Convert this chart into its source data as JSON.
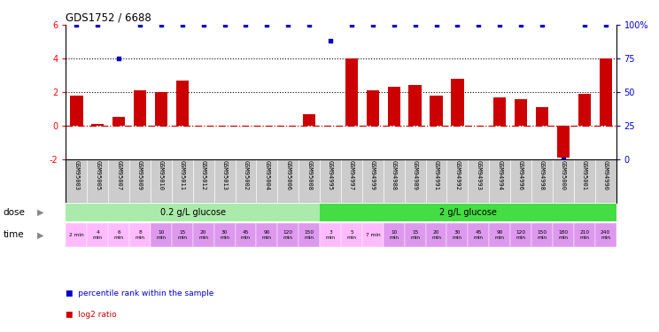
{
  "title": "GDS1752 / 6688",
  "samples": [
    "GSM95003",
    "GSM95005",
    "GSM95007",
    "GSM95009",
    "GSM95010",
    "GSM95011",
    "GSM95012",
    "GSM95013",
    "GSM95002",
    "GSM95004",
    "GSM95006",
    "GSM95008",
    "GSM94995",
    "GSM94997",
    "GSM94999",
    "GSM94988",
    "GSM94989",
    "GSM94991",
    "GSM94992",
    "GSM94993",
    "GSM94994",
    "GSM94996",
    "GSM94998",
    "GSM95000",
    "GSM95001",
    "GSM94990"
  ],
  "log2_ratio": [
    1.8,
    0.1,
    0.5,
    2.1,
    2.0,
    2.7,
    0.0,
    0.0,
    0.0,
    0.0,
    0.0,
    0.7,
    0.0,
    4.0,
    2.1,
    2.3,
    2.4,
    1.8,
    2.8,
    0.0,
    1.7,
    1.6,
    1.1,
    -1.9,
    1.9,
    4.0
  ],
  "percentile_rank": [
    100,
    100,
    75,
    100,
    100,
    100,
    100,
    100,
    100,
    100,
    100,
    100,
    88,
    100,
    100,
    100,
    100,
    100,
    100,
    100,
    100,
    100,
    100,
    0,
    100,
    100
  ],
  "ylim_left": [
    -2,
    6
  ],
  "ylim_right": [
    0,
    100
  ],
  "yticks_left": [
    -2,
    0,
    2,
    4,
    6
  ],
  "yticks_right": [
    0,
    25,
    50,
    75,
    100
  ],
  "ytick_right_labels": [
    "0",
    "25",
    "50",
    "75",
    "100%"
  ],
  "hlines_dotted": [
    2,
    4
  ],
  "bar_color": "#cc0000",
  "square_color": "#0000cc",
  "zero_line_color": "#cc0000",
  "dose_groups": [
    {
      "label": "0.2 g/L glucose",
      "start": 0,
      "end": 12,
      "color": "#aaeaaa"
    },
    {
      "label": "2 g/L glucose",
      "start": 12,
      "end": 26,
      "color": "#44dd44"
    }
  ],
  "time_labels": [
    "2 min",
    "4\nmin",
    "6\nmin",
    "8\nmin",
    "10\nmin",
    "15\nmin",
    "20\nmin",
    "30\nmin",
    "45\nmin",
    "90\nmin",
    "120\nmin",
    "150\nmin",
    "3\nmin",
    "5\nmin",
    "7 min",
    "10\nmin",
    "15\nmin",
    "20\nmin",
    "30\nmin",
    "45\nmin",
    "90\nmin",
    "120\nmin",
    "150\nmin",
    "180\nmin",
    "210\nmin",
    "240\nmin"
  ],
  "time_colors": [
    "#ffbbff",
    "#ffbbff",
    "#ffbbff",
    "#ffbbff",
    "#dd99ee",
    "#dd99ee",
    "#dd99ee",
    "#dd99ee",
    "#dd99ee",
    "#dd99ee",
    "#dd99ee",
    "#dd99ee",
    "#ffbbff",
    "#ffbbff",
    "#ffbbff",
    "#dd99ee",
    "#dd99ee",
    "#dd99ee",
    "#dd99ee",
    "#dd99ee",
    "#dd99ee",
    "#dd99ee",
    "#dd99ee",
    "#dd99ee",
    "#dd99ee",
    "#dd99ee"
  ],
  "dose_label": "dose",
  "time_label": "time",
  "legend_items": [
    {
      "label": "log2 ratio",
      "color": "#cc0000"
    },
    {
      "label": "percentile rank within the sample",
      "color": "#0000cc"
    }
  ],
  "bg_color": "#ffffff",
  "sample_bg_color": "#cccccc"
}
